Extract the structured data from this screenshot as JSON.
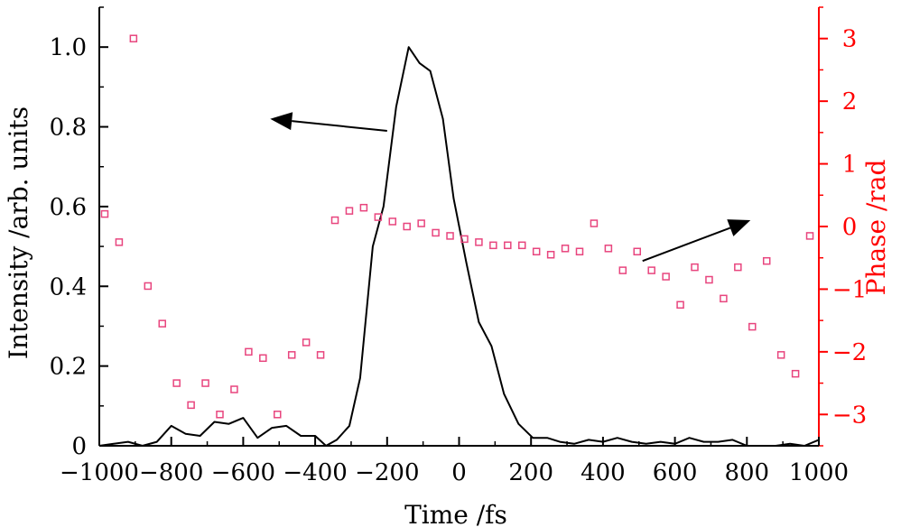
{
  "chart_data": {
    "type": "line+scatter",
    "xlabel": "Time /fs",
    "ylabel_left": "Intensity /arb. units",
    "ylabel_right": "Phase /rad",
    "xlim": [
      -1000,
      1000
    ],
    "ylim_left": [
      0,
      1.1
    ],
    "ylim_right": [
      -3.5,
      3.5
    ],
    "xticks": [
      {
        "value": -1000,
        "label": "−1000"
      },
      {
        "value": -800,
        "label": "−800"
      },
      {
        "value": -600,
        "label": "−600"
      },
      {
        "value": -400,
        "label": "−400"
      },
      {
        "value": -200,
        "label": "−200"
      },
      {
        "value": 0,
        "label": "0"
      },
      {
        "value": 200,
        "label": "200"
      },
      {
        "value": 400,
        "label": "400"
      },
      {
        "value": 600,
        "label": "600"
      },
      {
        "value": 800,
        "label": "800"
      },
      {
        "value": 1000,
        "label": "1000"
      }
    ],
    "yticks_left": [
      {
        "value": 0,
        "label": "0"
      },
      {
        "value": 0.2,
        "label": "0.2"
      },
      {
        "value": 0.4,
        "label": "0.4"
      },
      {
        "value": 0.6,
        "label": "0.6"
      },
      {
        "value": 0.8,
        "label": "0.8"
      },
      {
        "value": 1.0,
        "label": "1.0"
      }
    ],
    "yticks_right": [
      {
        "value": 3,
        "label": "3"
      },
      {
        "value": 2,
        "label": "2"
      },
      {
        "value": 1,
        "label": "1"
      },
      {
        "value": 0,
        "label": "0"
      },
      {
        "value": -1,
        "label": "−1"
      },
      {
        "value": -2,
        "label": "−2"
      },
      {
        "value": -3,
        "label": "−3"
      }
    ],
    "series": [
      {
        "name": "Intensity",
        "axis": "left",
        "style": "line",
        "color": "#000000",
        "x": [
          -1000,
          -960,
          -920,
          -880,
          -840,
          -800,
          -760,
          -720,
          -680,
          -640,
          -600,
          -560,
          -520,
          -480,
          -440,
          -400,
          -370,
          -340,
          -305,
          -275,
          -240,
          -210,
          -175,
          -140,
          -110,
          -80,
          -45,
          -15,
          20,
          55,
          90,
          125,
          165,
          205,
          245,
          280,
          320,
          360,
          400,
          440,
          480,
          520,
          560,
          600,
          640,
          680,
          720,
          760,
          800,
          840,
          880,
          920,
          960,
          1000
        ],
        "y": [
          0.0,
          0.005,
          0.01,
          0.0,
          0.01,
          0.05,
          0.03,
          0.025,
          0.06,
          0.055,
          0.07,
          0.02,
          0.045,
          0.05,
          0.025,
          0.025,
          0.0,
          0.015,
          0.05,
          0.17,
          0.5,
          0.6,
          0.85,
          1.0,
          0.96,
          0.94,
          0.82,
          0.62,
          0.46,
          0.31,
          0.25,
          0.13,
          0.055,
          0.02,
          0.02,
          0.01,
          0.005,
          0.015,
          0.01,
          0.02,
          0.01,
          0.005,
          0.01,
          0.005,
          0.02,
          0.01,
          0.01,
          0.015,
          0.0,
          0.0,
          0.0,
          0.005,
          0.0,
          0.015
        ]
      },
      {
        "name": "Phase",
        "axis": "right",
        "style": "markers",
        "color": "#e8457e",
        "x": [
          -985,
          -945,
          -905,
          -865,
          -825,
          -785,
          -745,
          -705,
          -665,
          -625,
          -585,
          -545,
          -505,
          -465,
          -425,
          -385,
          -345,
          -305,
          -265,
          -225,
          -185,
          -145,
          -105,
          -65,
          -25,
          15,
          55,
          95,
          135,
          175,
          215,
          255,
          295,
          335,
          375,
          415,
          455,
          495,
          535,
          575,
          615,
          655,
          695,
          735,
          775,
          815,
          855,
          895,
          935,
          975
        ],
        "y": [
          0.2,
          -0.25,
          3.0,
          -0.95,
          -1.55,
          -2.5,
          -2.85,
          -2.5,
          -3.0,
          -2.6,
          -2.0,
          -2.1,
          -3.0,
          -2.05,
          -1.85,
          -2.05,
          0.1,
          0.25,
          0.3,
          0.15,
          0.08,
          0.0,
          0.05,
          -0.1,
          -0.15,
          -0.2,
          -0.25,
          -0.3,
          -0.3,
          -0.3,
          -0.4,
          -0.45,
          -0.35,
          -0.4,
          0.05,
          -0.35,
          -0.7,
          -0.4,
          -0.7,
          -0.8,
          -1.25,
          -0.65,
          -0.85,
          -1.15,
          -0.65,
          -1.6,
          -0.55,
          -2.05,
          -2.35,
          -0.15
        ]
      }
    ],
    "annotations": [
      {
        "kind": "arrow",
        "points_to": "left axis",
        "from": {
          "x": -200,
          "y": 0.79
        },
        "to": {
          "x": -525,
          "y": 0.82
        }
      },
      {
        "kind": "arrow",
        "points_to": "right axis",
        "from": {
          "x": 510,
          "y": -0.55
        },
        "to": {
          "x": 810,
          "y": 0.1
        }
      }
    ]
  }
}
